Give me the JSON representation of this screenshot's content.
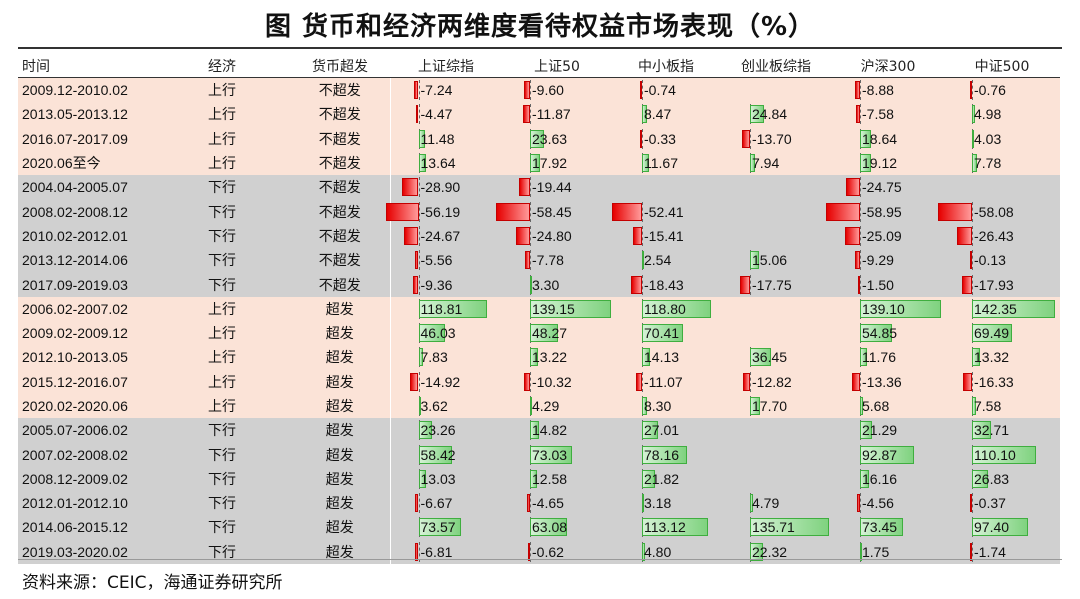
{
  "title": "图  货币和经济两维度看待权益市场表现（%）",
  "source": "资料来源：CEIC，海通证券研究所",
  "headers": [
    "时间",
    "经济",
    "货币超发",
    "上证综指",
    "上证50",
    "中小板指",
    "创业板综指",
    "沪深300",
    "中证500"
  ],
  "colors": {
    "up_row": "#fbe3d7",
    "down_row": "#d0d0d0",
    "positive_bar": "#7fd27f",
    "negative_bar": "#e60000"
  },
  "chart_data": {
    "type": "table",
    "columns": [
      "上证综指",
      "上证50",
      "中小板指",
      "创业板综指",
      "沪深300",
      "中证500"
    ],
    "rows": [
      {
        "period": "2009.12-2010.02",
        "economy": "上行",
        "money": "不超发",
        "values": [
          -7.24,
          -9.6,
          -0.74,
          null,
          -8.88,
          -0.76
        ]
      },
      {
        "period": "2013.05-2013.12",
        "economy": "上行",
        "money": "不超发",
        "values": [
          -4.47,
          -11.87,
          8.47,
          24.84,
          -7.58,
          4.98
        ]
      },
      {
        "period": "2016.07-2017.09",
        "economy": "上行",
        "money": "不超发",
        "values": [
          11.48,
          23.63,
          -0.33,
          -13.7,
          18.64,
          4.03
        ]
      },
      {
        "period": "2020.06至今",
        "economy": "上行",
        "money": "不超发",
        "values": [
          13.64,
          17.92,
          11.67,
          7.94,
          19.12,
          7.78
        ]
      },
      {
        "period": "2004.04-2005.07",
        "economy": "下行",
        "money": "不超发",
        "values": [
          -28.9,
          -19.44,
          null,
          null,
          -24.75,
          null
        ]
      },
      {
        "period": "2008.02-2008.12",
        "economy": "下行",
        "money": "不超发",
        "values": [
          -56.19,
          -58.45,
          -52.41,
          null,
          -58.95,
          -58.08
        ]
      },
      {
        "period": "2010.02-2012.01",
        "economy": "下行",
        "money": "不超发",
        "values": [
          -24.67,
          -24.8,
          -15.41,
          null,
          -25.09,
          -26.43
        ]
      },
      {
        "period": "2013.12-2014.06",
        "economy": "下行",
        "money": "不超发",
        "values": [
          -5.56,
          -7.78,
          2.54,
          15.06,
          -9.29,
          -0.13
        ]
      },
      {
        "period": "2017.09-2019.03",
        "economy": "下行",
        "money": "不超发",
        "values": [
          -9.36,
          3.3,
          -18.43,
          -17.75,
          -1.5,
          -17.93
        ]
      },
      {
        "period": "2006.02-2007.02",
        "economy": "上行",
        "money": "超发",
        "values": [
          118.81,
          139.15,
          118.8,
          null,
          139.1,
          142.35
        ]
      },
      {
        "period": "2009.02-2009.12",
        "economy": "上行",
        "money": "超发",
        "values": [
          46.03,
          48.27,
          70.41,
          null,
          54.85,
          69.49
        ]
      },
      {
        "period": "2012.10-2013.05",
        "economy": "上行",
        "money": "超发",
        "values": [
          7.83,
          13.22,
          14.13,
          36.45,
          11.76,
          13.32
        ]
      },
      {
        "period": "2015.12-2016.07",
        "economy": "上行",
        "money": "超发",
        "values": [
          -14.92,
          -10.32,
          -11.07,
          -12.82,
          -13.36,
          -16.33
        ]
      },
      {
        "period": "2020.02-2020.06",
        "economy": "上行",
        "money": "超发",
        "values": [
          3.62,
          4.29,
          8.3,
          17.7,
          5.68,
          7.58
        ]
      },
      {
        "period": "2005.07-2006.02",
        "economy": "下行",
        "money": "超发",
        "values": [
          23.26,
          14.82,
          27.01,
          null,
          21.29,
          32.71
        ]
      },
      {
        "period": "2007.02-2008.02",
        "economy": "下行",
        "money": "超发",
        "values": [
          58.42,
          73.03,
          78.16,
          null,
          92.87,
          110.1
        ]
      },
      {
        "period": "2008.12-2009.02",
        "economy": "下行",
        "money": "超发",
        "values": [
          13.03,
          12.58,
          21.82,
          null,
          16.16,
          26.83
        ]
      },
      {
        "period": "2012.01-2012.10",
        "economy": "下行",
        "money": "超发",
        "values": [
          -6.67,
          -4.65,
          3.18,
          4.79,
          -4.56,
          -0.37
        ]
      },
      {
        "period": "2014.06-2015.12",
        "economy": "下行",
        "money": "超发",
        "values": [
          73.57,
          63.08,
          113.12,
          135.71,
          73.45,
          97.4
        ]
      },
      {
        "period": "2019.03-2020.02",
        "economy": "下行",
        "money": "超发",
        "values": [
          -6.81,
          -0.62,
          4.8,
          22.32,
          1.75,
          -1.74
        ]
      }
    ]
  }
}
